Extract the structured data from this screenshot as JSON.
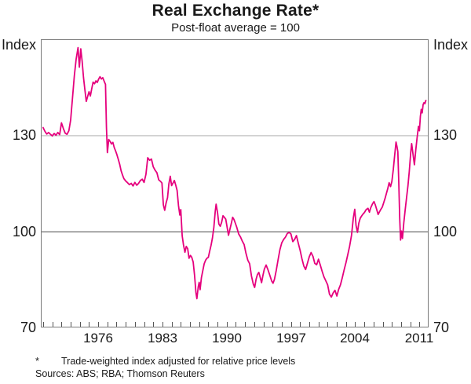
{
  "title": "Real Exchange Rate*",
  "subtitle": "Post-float average = 100",
  "axis": {
    "left_unit": "Index",
    "right_unit": "Index"
  },
  "footnote": {
    "marker": "*",
    "text": "Trade-weighted index adjusted for relative price levels",
    "sources": "Sources: ABS; RBA; Thomson Reuters"
  },
  "colors": {
    "line": "#E5007D",
    "grid_light": "#b5b5b5",
    "reference_line": "#4d4d4d",
    "frame": "#7a7a7a",
    "tick": "#555555",
    "text": "#1a1a1a"
  },
  "chart_data": {
    "type": "line",
    "title": "Real Exchange Rate*",
    "subtitle": "Post-float average = 100",
    "xlabel": "",
    "ylabel": "Index",
    "legend": "none",
    "grid": "horizontal-only",
    "x_range": [
      1969.75,
      2012.0
    ],
    "y_range": [
      70,
      160
    ],
    "y_tick_labels": [
      130,
      100,
      70
    ],
    "y_gridline_light": 130,
    "y_reference_dark": 100,
    "x_tick_labels": [
      1976,
      1983,
      1990,
      1997,
      2004,
      2011
    ],
    "x_minor_tick_step": 1,
    "series": [
      {
        "name": "Real exchange rate (post-float average = 100)",
        "color": "#E5007D",
        "points": [
          [
            1970.0,
            132.4
          ],
          [
            1970.2,
            131.2
          ],
          [
            1970.4,
            130.4
          ],
          [
            1970.6,
            130.9
          ],
          [
            1970.8,
            130.3
          ],
          [
            1971.0,
            129.8
          ],
          [
            1971.2,
            130.6
          ],
          [
            1971.4,
            130.0
          ],
          [
            1971.6,
            130.9
          ],
          [
            1971.8,
            130.2
          ],
          [
            1972.0,
            133.9
          ],
          [
            1972.2,
            132.2
          ],
          [
            1972.4,
            130.7
          ],
          [
            1972.6,
            130.3
          ],
          [
            1972.8,
            131.4
          ],
          [
            1973.0,
            134.8
          ],
          [
            1973.2,
            141.5
          ],
          [
            1973.4,
            148.6
          ],
          [
            1973.6,
            153.8
          ],
          [
            1973.8,
            157.4
          ],
          [
            1973.95,
            151.3
          ],
          [
            1974.1,
            157.0
          ],
          [
            1974.25,
            153.2
          ],
          [
            1974.4,
            148.0
          ],
          [
            1974.55,
            144.3
          ],
          [
            1974.7,
            140.6
          ],
          [
            1974.85,
            142.1
          ],
          [
            1975.0,
            143.6
          ],
          [
            1975.15,
            142.3
          ],
          [
            1975.3,
            144.6
          ],
          [
            1975.45,
            146.6
          ],
          [
            1975.6,
            146.1
          ],
          [
            1975.75,
            147.0
          ],
          [
            1975.9,
            146.5
          ],
          [
            1976.05,
            147.6
          ],
          [
            1976.2,
            148.3
          ],
          [
            1976.35,
            147.6
          ],
          [
            1976.5,
            148.0
          ],
          [
            1976.65,
            146.9
          ],
          [
            1976.8,
            145.9
          ],
          [
            1976.9,
            132.5
          ],
          [
            1977.0,
            124.6
          ],
          [
            1977.15,
            128.7
          ],
          [
            1977.3,
            128.1
          ],
          [
            1977.45,
            127.3
          ],
          [
            1977.6,
            127.8
          ],
          [
            1977.75,
            126.2
          ],
          [
            1977.9,
            125.1
          ],
          [
            1978.05,
            123.9
          ],
          [
            1978.2,
            122.4
          ],
          [
            1978.35,
            120.8
          ],
          [
            1978.5,
            118.9
          ],
          [
            1978.65,
            117.6
          ],
          [
            1978.8,
            116.5
          ],
          [
            1979.0,
            115.7
          ],
          [
            1979.2,
            115.2
          ],
          [
            1979.4,
            114.6
          ],
          [
            1979.6,
            115.0
          ],
          [
            1979.8,
            114.2
          ],
          [
            1980.0,
            115.3
          ],
          [
            1980.2,
            114.4
          ],
          [
            1980.4,
            115.0
          ],
          [
            1980.6,
            115.9
          ],
          [
            1980.8,
            116.3
          ],
          [
            1981.0,
            115.3
          ],
          [
            1981.2,
            117.8
          ],
          [
            1981.4,
            123.0
          ],
          [
            1981.6,
            122.2
          ],
          [
            1981.8,
            122.6
          ],
          [
            1982.0,
            120.2
          ],
          [
            1982.2,
            119.1
          ],
          [
            1982.4,
            118.3
          ],
          [
            1982.6,
            116.1
          ],
          [
            1982.8,
            115.6
          ],
          [
            1982.95,
            115.1
          ],
          [
            1983.1,
            108.3
          ],
          [
            1983.25,
            106.6
          ],
          [
            1983.4,
            108.9
          ],
          [
            1983.55,
            110.5
          ],
          [
            1983.7,
            114.8
          ],
          [
            1983.85,
            117.2
          ],
          [
            1984.0,
            114.3
          ],
          [
            1984.15,
            115.1
          ],
          [
            1984.3,
            115.9
          ],
          [
            1984.45,
            114.4
          ],
          [
            1984.6,
            112.8
          ],
          [
            1984.75,
            108.0
          ],
          [
            1984.9,
            105.1
          ],
          [
            1985.0,
            106.8
          ],
          [
            1985.15,
            98.6
          ],
          [
            1985.3,
            95.7
          ],
          [
            1985.45,
            93.5
          ],
          [
            1985.6,
            95.3
          ],
          [
            1985.75,
            94.6
          ],
          [
            1985.9,
            91.6
          ],
          [
            1986.05,
            92.5
          ],
          [
            1986.2,
            91.9
          ],
          [
            1986.35,
            90.4
          ],
          [
            1986.5,
            86.4
          ],
          [
            1986.65,
            80.9
          ],
          [
            1986.75,
            79.0
          ],
          [
            1986.9,
            82.6
          ],
          [
            1987.0,
            84.1
          ],
          [
            1987.1,
            81.8
          ],
          [
            1987.25,
            85.6
          ],
          [
            1987.4,
            87.8
          ],
          [
            1987.55,
            89.9
          ],
          [
            1987.7,
            91.0
          ],
          [
            1987.85,
            91.6
          ],
          [
            1988.0,
            91.9
          ],
          [
            1988.15,
            93.8
          ],
          [
            1988.3,
            95.7
          ],
          [
            1988.45,
            97.9
          ],
          [
            1988.6,
            101.2
          ],
          [
            1988.75,
            106.3
          ],
          [
            1988.85,
            108.5
          ],
          [
            1989.0,
            105.9
          ],
          [
            1989.15,
            102.3
          ],
          [
            1989.3,
            101.6
          ],
          [
            1989.45,
            102.8
          ],
          [
            1989.6,
            104.9
          ],
          [
            1989.75,
            104.4
          ],
          [
            1989.9,
            103.8
          ],
          [
            1990.05,
            101.2
          ],
          [
            1990.2,
            98.8
          ],
          [
            1990.35,
            100.7
          ],
          [
            1990.5,
            102.4
          ],
          [
            1990.65,
            104.4
          ],
          [
            1990.8,
            103.7
          ],
          [
            1990.95,
            102.5
          ],
          [
            1991.1,
            101.3
          ],
          [
            1991.3,
            99.2
          ],
          [
            1991.5,
            98.3
          ],
          [
            1991.7,
            97.0
          ],
          [
            1991.9,
            95.9
          ],
          [
            1992.1,
            93.2
          ],
          [
            1992.3,
            91.0
          ],
          [
            1992.5,
            89.9
          ],
          [
            1992.7,
            86.1
          ],
          [
            1992.9,
            83.5
          ],
          [
            1993.05,
            82.5
          ],
          [
            1993.2,
            85.0
          ],
          [
            1993.35,
            86.5
          ],
          [
            1993.5,
            87.2
          ],
          [
            1993.65,
            85.7
          ],
          [
            1993.8,
            84.0
          ],
          [
            1993.95,
            86.3
          ],
          [
            1994.1,
            88.2
          ],
          [
            1994.3,
            89.5
          ],
          [
            1994.5,
            88.0
          ],
          [
            1994.7,
            86.3
          ],
          [
            1994.9,
            84.5
          ],
          [
            1995.05,
            83.8
          ],
          [
            1995.2,
            85.0
          ],
          [
            1995.4,
            87.8
          ],
          [
            1995.6,
            91.1
          ],
          [
            1995.8,
            94.3
          ],
          [
            1996.0,
            96.4
          ],
          [
            1996.2,
            97.5
          ],
          [
            1996.4,
            98.2
          ],
          [
            1996.6,
            99.3
          ],
          [
            1996.8,
            99.7
          ],
          [
            1997.0,
            99.2
          ],
          [
            1997.2,
            96.8
          ],
          [
            1997.4,
            97.5
          ],
          [
            1997.6,
            98.7
          ],
          [
            1997.8,
            96.3
          ],
          [
            1998.0,
            94.1
          ],
          [
            1998.2,
            91.5
          ],
          [
            1998.4,
            89.2
          ],
          [
            1998.6,
            88.1
          ],
          [
            1998.8,
            90.1
          ],
          [
            1999.0,
            92.1
          ],
          [
            1999.2,
            93.4
          ],
          [
            1999.4,
            92.2
          ],
          [
            1999.6,
            90.0
          ],
          [
            1999.8,
            89.6
          ],
          [
            2000.0,
            91.3
          ],
          [
            2000.2,
            89.5
          ],
          [
            2000.4,
            87.5
          ],
          [
            2000.6,
            85.8
          ],
          [
            2000.8,
            84.6
          ],
          [
            2001.0,
            83.3
          ],
          [
            2001.2,
            80.4
          ],
          [
            2001.4,
            79.5
          ],
          [
            2001.6,
            80.8
          ],
          [
            2001.8,
            81.6
          ],
          [
            2002.0,
            79.8
          ],
          [
            2002.2,
            81.9
          ],
          [
            2002.4,
            83.4
          ],
          [
            2002.6,
            85.6
          ],
          [
            2002.8,
            88.0
          ],
          [
            2003.0,
            90.3
          ],
          [
            2003.2,
            92.8
          ],
          [
            2003.4,
            95.4
          ],
          [
            2003.6,
            98.8
          ],
          [
            2003.8,
            104.2
          ],
          [
            2003.95,
            106.9
          ],
          [
            2004.1,
            101.8
          ],
          [
            2004.25,
            99.7
          ],
          [
            2004.4,
            102.6
          ],
          [
            2004.55,
            104.1
          ],
          [
            2004.7,
            104.8
          ],
          [
            2004.85,
            105.4
          ],
          [
            2005.0,
            105.9
          ],
          [
            2005.2,
            106.8
          ],
          [
            2005.4,
            107.2
          ],
          [
            2005.55,
            106.0
          ],
          [
            2005.7,
            107.4
          ],
          [
            2005.9,
            108.7
          ],
          [
            2006.05,
            109.3
          ],
          [
            2006.2,
            108.2
          ],
          [
            2006.35,
            106.8
          ],
          [
            2006.5,
            105.3
          ],
          [
            2006.65,
            106.1
          ],
          [
            2006.8,
            106.9
          ],
          [
            2006.95,
            107.6
          ],
          [
            2007.1,
            108.9
          ],
          [
            2007.25,
            110.3
          ],
          [
            2007.4,
            111.8
          ],
          [
            2007.55,
            113.4
          ],
          [
            2007.7,
            115.2
          ],
          [
            2007.85,
            114.0
          ],
          [
            2008.0,
            115.6
          ],
          [
            2008.15,
            119.3
          ],
          [
            2008.3,
            123.6
          ],
          [
            2008.45,
            127.9
          ],
          [
            2008.55,
            126.5
          ],
          [
            2008.65,
            124.9
          ],
          [
            2008.75,
            115.3
          ],
          [
            2008.85,
            104.0
          ],
          [
            2008.95,
            97.3
          ],
          [
            2009.05,
            100.1
          ],
          [
            2009.15,
            97.8
          ],
          [
            2009.3,
            102.7
          ],
          [
            2009.45,
            106.8
          ],
          [
            2009.6,
            110.5
          ],
          [
            2009.75,
            114.3
          ],
          [
            2009.9,
            118.8
          ],
          [
            2010.05,
            124.6
          ],
          [
            2010.15,
            127.4
          ],
          [
            2010.3,
            124.2
          ],
          [
            2010.45,
            120.8
          ],
          [
            2010.6,
            125.3
          ],
          [
            2010.75,
            129.4
          ],
          [
            2010.9,
            132.8
          ],
          [
            2011.0,
            131.4
          ],
          [
            2011.1,
            135.9
          ],
          [
            2011.2,
            138.1
          ],
          [
            2011.3,
            137.0
          ],
          [
            2011.4,
            139.6
          ],
          [
            2011.5,
            140.2
          ],
          [
            2011.6,
            139.9
          ],
          [
            2011.7,
            140.9
          ]
        ]
      }
    ]
  }
}
